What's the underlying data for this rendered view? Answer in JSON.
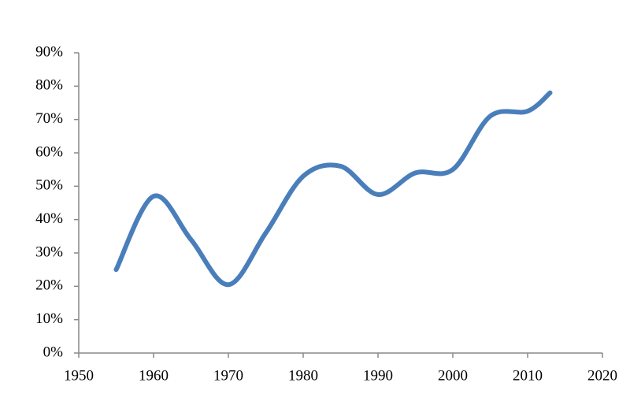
{
  "chart_data": {
    "type": "line",
    "x": [
      1955,
      1960,
      1965,
      1970,
      1975,
      1980,
      1985,
      1990,
      1995,
      2000,
      2005,
      2010,
      2013
    ],
    "values": [
      25,
      47,
      34,
      20.5,
      36,
      53,
      56,
      47.5,
      54,
      55,
      71,
      72.5,
      78
    ],
    "color": "#4a7ebb",
    "xlim": [
      1950,
      2020
    ],
    "xticks": [
      1950,
      1960,
      1970,
      1980,
      1990,
      2000,
      2010,
      2020
    ],
    "ylim": [
      0,
      90
    ],
    "yticks": [
      {
        "value": 0,
        "label": "0%"
      },
      {
        "value": 10,
        "label": "10%"
      },
      {
        "value": 20,
        "label": "20%"
      },
      {
        "value": 30,
        "label": "30%"
      },
      {
        "value": 40,
        "label": "40%"
      },
      {
        "value": 50,
        "label": "50%"
      },
      {
        "value": 60,
        "label": "60%"
      },
      {
        "value": 70,
        "label": "70%"
      },
      {
        "value": 80,
        "label": "80%"
      },
      {
        "value": 90,
        "label": "90%"
      }
    ],
    "grid": false
  }
}
